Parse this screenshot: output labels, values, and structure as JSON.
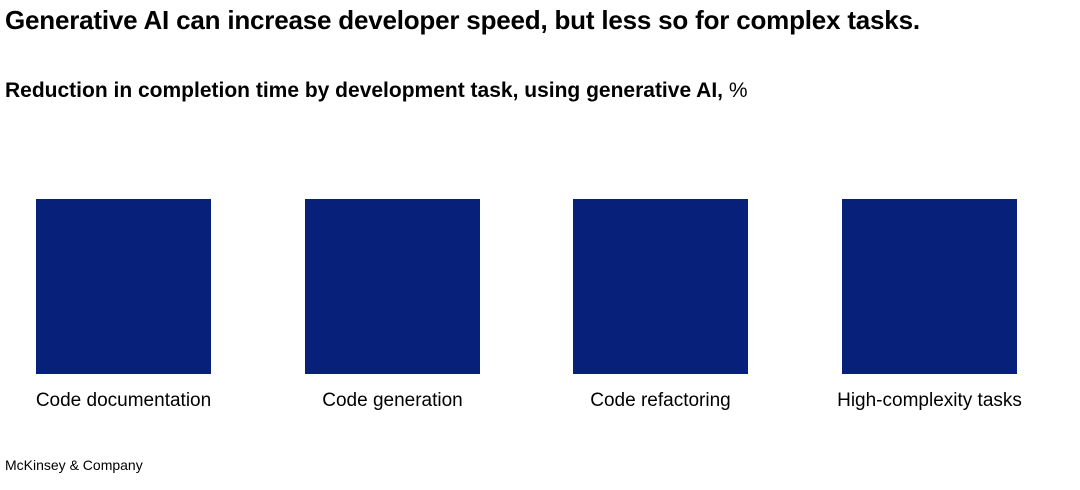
{
  "chart_data": {
    "type": "bar",
    "title": "Generative AI can increase developer speed, but less so for complex tasks.",
    "subtitle": "Reduction in completion time by development task, using generative AI,",
    "unit": "%",
    "categories": [
      "Code documentation",
      "Code generation",
      "Code refactoring",
      "High-complexity tasks"
    ],
    "mark": "square",
    "color": "#07207a",
    "grid": false
  },
  "footer": "McKinsey & Company"
}
